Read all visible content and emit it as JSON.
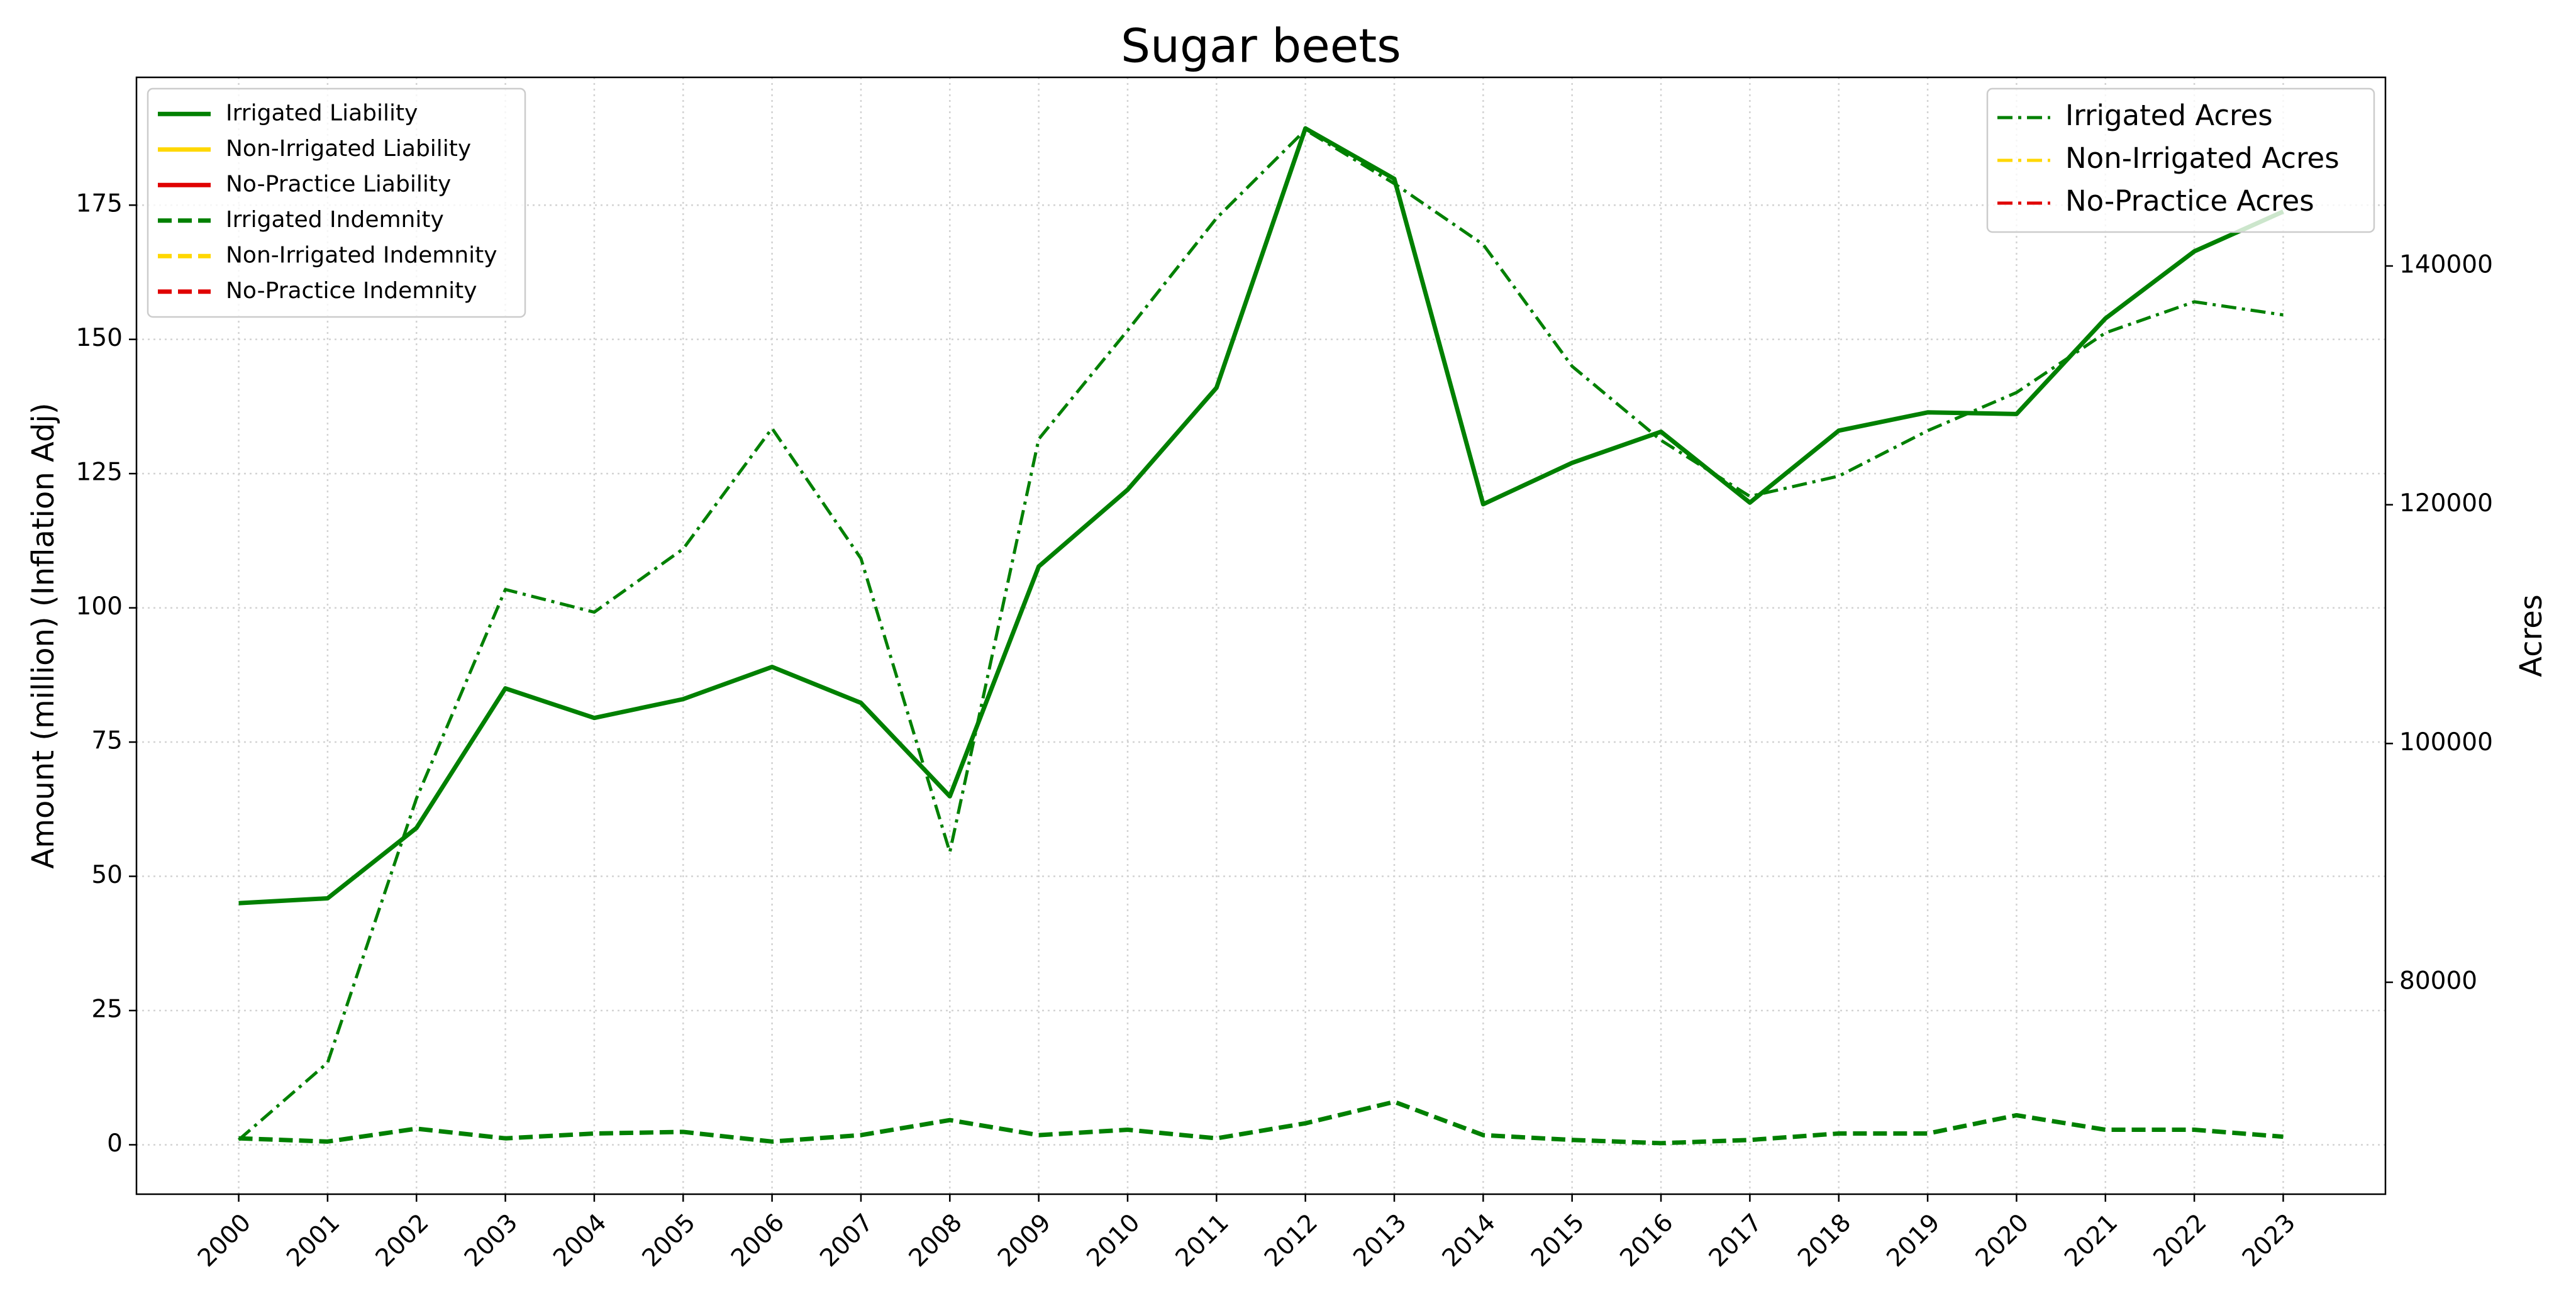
{
  "chart_data": {
    "type": "line",
    "title": "Sugar beets",
    "ylabel": "Amount (million) (Inflation Adj)",
    "y2label": "Acres",
    "x": [
      2000,
      2001,
      2002,
      2003,
      2004,
      2005,
      2006,
      2007,
      2008,
      2009,
      2010,
      2011,
      2012,
      2013,
      2014,
      2015,
      2016,
      2017,
      2018,
      2019,
      2020,
      2021,
      2022,
      2023
    ],
    "xlim": [
      1998.85,
      2024.15
    ],
    "ylim": [
      -9.2,
      198.8
    ],
    "yticks": [
      0,
      25,
      50,
      75,
      100,
      125,
      150,
      175
    ],
    "y2lim": [
      62250,
      155800
    ],
    "y2ticks": [
      80000,
      100000,
      120000,
      140000
    ],
    "grid": true,
    "legend": "upper left",
    "legend2": "upper right",
    "series": [
      {
        "name": "Irrigated Liability",
        "color": "#008000",
        "style": "solid",
        "values": [
          45,
          45.9,
          59,
          85,
          79.5,
          83,
          89,
          82.3,
          64.9,
          107.7,
          122,
          141,
          189.3,
          179.9,
          119.3,
          127,
          132.8,
          119.6,
          133,
          136.4,
          136.1,
          153.9,
          166.4,
          173.8
        ]
      },
      {
        "name": "Non-Irrigated Liability",
        "color": "#FFD700",
        "style": "solid",
        "values": [
          null,
          null,
          null,
          null,
          null,
          null,
          null,
          null,
          null,
          null,
          null,
          null,
          null,
          null,
          null,
          null,
          null,
          null,
          null,
          null,
          null,
          null,
          null,
          null
        ]
      },
      {
        "name": "No-Practice Liability",
        "color": "#E00000",
        "style": "solid",
        "values": [
          null,
          null,
          null,
          null,
          null,
          null,
          null,
          null,
          null,
          null,
          null,
          null,
          null,
          null,
          null,
          null,
          null,
          null,
          null,
          null,
          null,
          null,
          null,
          null
        ]
      },
      {
        "name": "Irrigated Indemnity",
        "color": "#008000",
        "style": "dashed",
        "values": [
          1.2,
          0.6,
          3,
          1.2,
          2.1,
          2.4,
          0.6,
          1.8,
          4.6,
          1.8,
          2.8,
          1.2,
          4,
          8,
          1.8,
          0.9,
          0.3,
          0.9,
          2.1,
          2.1,
          5.5,
          2.8,
          2.8,
          1.5
        ]
      },
      {
        "name": "Non-Irrigated Indemnity",
        "color": "#FFD700",
        "style": "dashed",
        "values": [
          null,
          null,
          null,
          null,
          null,
          null,
          null,
          null,
          null,
          null,
          null,
          null,
          null,
          null,
          null,
          null,
          null,
          null,
          null,
          null,
          null,
          null,
          null,
          null
        ]
      },
      {
        "name": "No-Practice Indemnity",
        "color": "#E00000",
        "style": "dashed",
        "values": [
          null,
          null,
          null,
          null,
          null,
          null,
          null,
          null,
          null,
          null,
          null,
          null,
          null,
          null,
          null,
          null,
          null,
          null,
          null,
          null,
          null,
          null,
          null,
          null
        ]
      },
      {
        "name": "Irrigated Acres",
        "color": "#008000",
        "style": "dashdot",
        "axis": "y2",
        "values": [
          66800,
          73260,
          95400,
          112900,
          111000,
          116300,
          126400,
          115500,
          90900,
          125500,
          134600,
          144000,
          151400,
          146900,
          141800,
          131600,
          125400,
          120700,
          122400,
          126200,
          129400,
          134400,
          137000,
          135900
        ]
      },
      {
        "name": "Non-Irrigated Acres",
        "color": "#FFD700",
        "style": "dashdot",
        "axis": "y2",
        "values": [
          null,
          null,
          null,
          null,
          null,
          null,
          null,
          null,
          null,
          null,
          null,
          null,
          null,
          null,
          null,
          null,
          null,
          null,
          null,
          null,
          null,
          null,
          null,
          null
        ]
      },
      {
        "name": "No-Practice Acres",
        "color": "#E00000",
        "style": "dashdot",
        "axis": "y2",
        "values": [
          null,
          null,
          null,
          null,
          null,
          null,
          null,
          null,
          null,
          null,
          null,
          null,
          null,
          null,
          null,
          null,
          null,
          null,
          null,
          null,
          null,
          null,
          null,
          null
        ]
      }
    ]
  }
}
